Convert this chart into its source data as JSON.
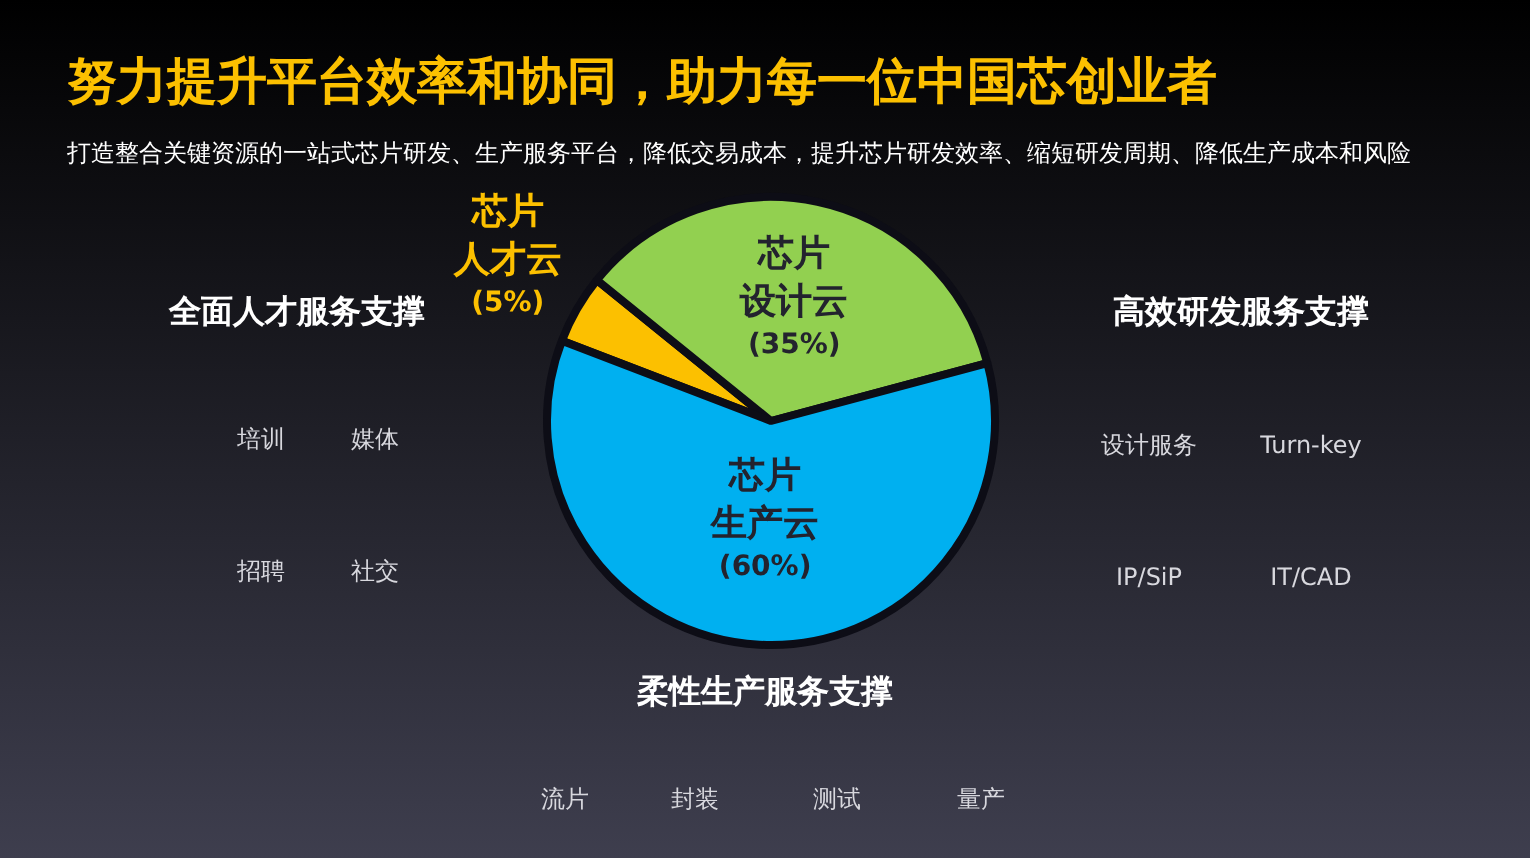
{
  "chart_data": {
    "type": "pie",
    "title": "努力提升平台效率和协同，助力每一位中国芯创业者",
    "subtitle": "打造整合关键资源的一站式芯片研发、生产服务平台，降低交易成本，提升芯片研发效率、缩短研发周期、降低生产成本和风险",
    "categories": [
      "芯片人才云",
      "芯片设计云",
      "芯片生产云"
    ],
    "values": [
      5,
      35,
      60
    ],
    "value_labels": [
      "(5%)",
      "(35%)",
      "(60%)"
    ],
    "colors": [
      "#fcc000",
      "#92d050",
      "#00b0f0"
    ],
    "annotations": [
      "全面人才服务支撑",
      "培训",
      "媒体",
      "招聘",
      "社交",
      "高效研发服务支撑",
      "设计服务",
      "Turn-key",
      "IP/SiP",
      "IT/CAD",
      "柔性生产服务支撑",
      "流片",
      "封装",
      "测试",
      "量产"
    ]
  }
}
